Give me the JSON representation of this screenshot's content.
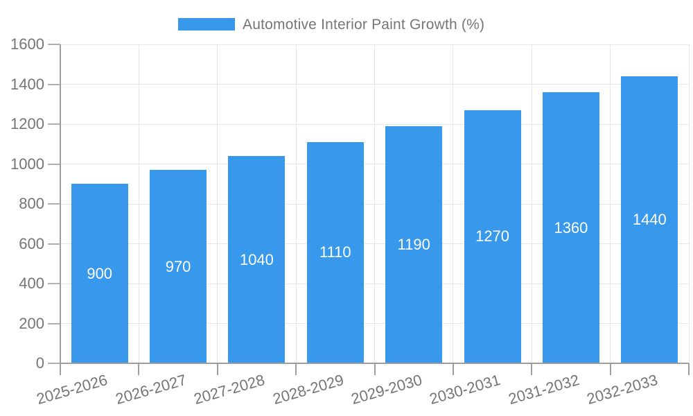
{
  "chart_data": {
    "type": "bar",
    "categories": [
      "2025-2026",
      "2026-2027",
      "2027-2028",
      "2028-2029",
      "2029-2030",
      "2030-2031",
      "2031-2032",
      "2032-2033"
    ],
    "values": [
      900,
      970,
      1040,
      1110,
      1190,
      1270,
      1360,
      1440
    ],
    "series": [
      {
        "name": "Automotive Interior Paint Growth (%)",
        "values": [
          900,
          970,
          1040,
          1110,
          1190,
          1270,
          1360,
          1440
        ]
      }
    ],
    "title": "",
    "xlabel": "",
    "ylabel": "",
    "ylim": [
      0,
      1600
    ],
    "yticks": [
      0,
      200,
      400,
      600,
      800,
      1000,
      1200,
      1400,
      1600
    ],
    "grid": true,
    "legend_position": "top",
    "bar_labels_inside": true,
    "colors": {
      "bar": "#3898EC",
      "bar_value_text": "#ffffff",
      "axis_text": "#757575",
      "gridline": "#e6e6e6",
      "axis_line": "#9e9e9e",
      "tick": "#b0b0b0"
    }
  },
  "legend": {
    "label": "Automotive Interior Paint Growth (%)"
  }
}
